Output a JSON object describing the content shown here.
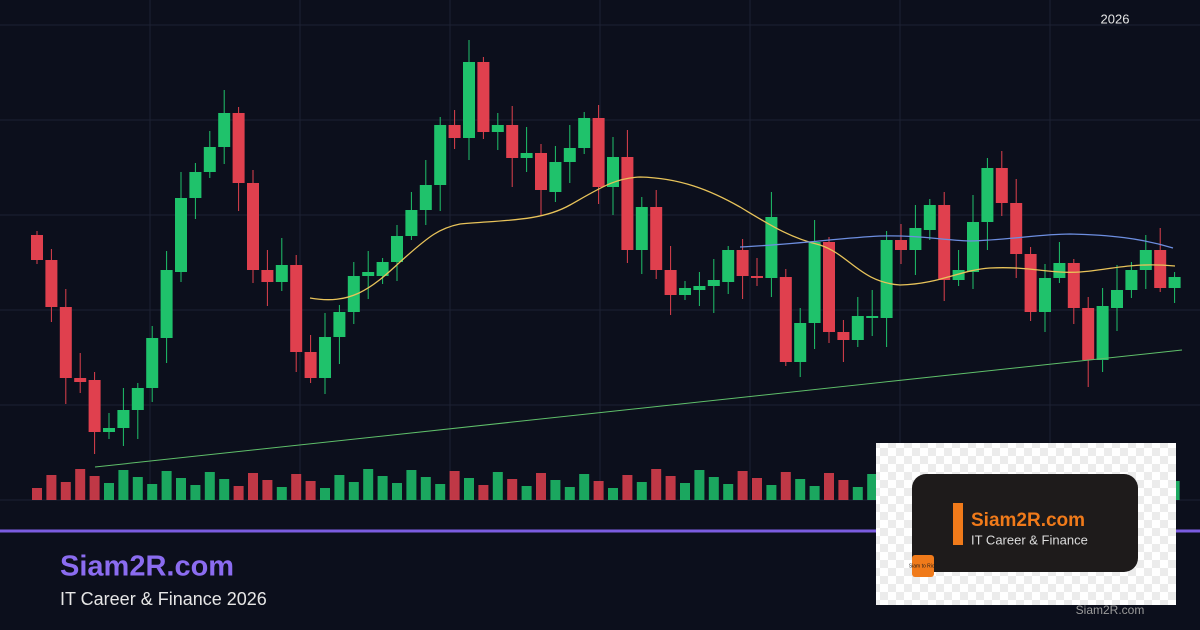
{
  "chart_label": "2026",
  "brand": {
    "name": "Siam2R.com",
    "tagline": "IT Career & Finance 2026"
  },
  "logo_card": {
    "name": "Siam2R.com",
    "tagline": "IT Career & Finance",
    "badge": "Siam to Rich"
  },
  "watermark": "Siam2R.com"
}
